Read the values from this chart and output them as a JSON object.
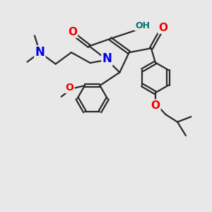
{
  "bg_color": "#e8e8e8",
  "bond_color": "#2a2a2a",
  "bond_width": 1.6,
  "atom_colors": {
    "N": "#0000ee",
    "O": "#ee0000",
    "O_teal": "#007070",
    "C": "#2a2a2a"
  },
  "dbl_sep": 0.07
}
